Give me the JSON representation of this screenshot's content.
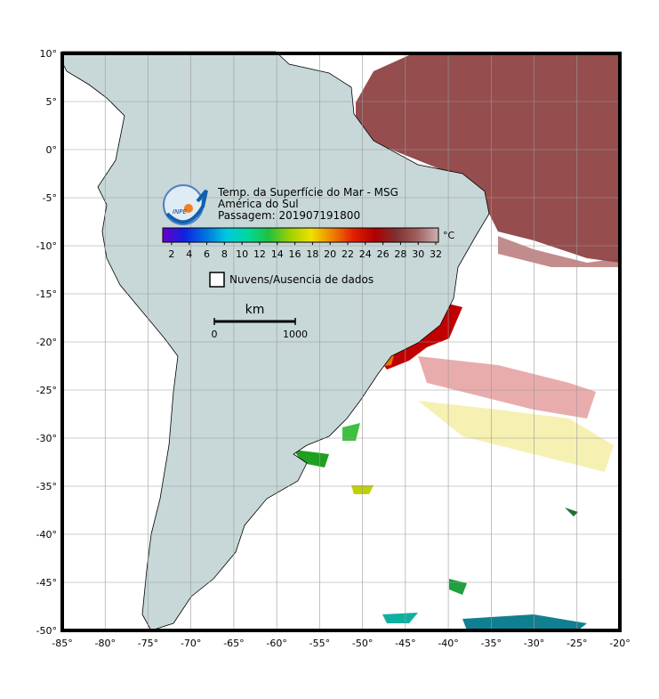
{
  "map": {
    "lon_range": [
      -85,
      -20
    ],
    "lat_range": [
      -50,
      10
    ],
    "grid": true,
    "lon_ticks": [
      {
        "value": -85,
        "label": "-85°"
      },
      {
        "value": -80,
        "label": "-80°"
      },
      {
        "value": -75,
        "label": "-75°"
      },
      {
        "value": -70,
        "label": "-70°"
      },
      {
        "value": -65,
        "label": "-65°"
      },
      {
        "value": -60,
        "label": "-60°"
      },
      {
        "value": -55,
        "label": "-55°"
      },
      {
        "value": -50,
        "label": "-50°"
      },
      {
        "value": -45,
        "label": "-45°"
      },
      {
        "value": -40,
        "label": "-40°"
      },
      {
        "value": -35,
        "label": "-35°"
      },
      {
        "value": -30,
        "label": "-30°"
      },
      {
        "value": -25,
        "label": "-25°"
      },
      {
        "value": -20,
        "label": "-20°"
      }
    ],
    "lat_ticks": [
      {
        "value": 10,
        "label": "10°"
      },
      {
        "value": 5,
        "label": "5°"
      },
      {
        "value": 0,
        "label": "0°"
      },
      {
        "value": -5,
        "label": "-5°"
      },
      {
        "value": -10,
        "label": "-10°"
      },
      {
        "value": -15,
        "label": "-15°"
      },
      {
        "value": -20,
        "label": "-20°"
      },
      {
        "value": -25,
        "label": "-25°"
      },
      {
        "value": -30,
        "label": "-30°"
      },
      {
        "value": -35,
        "label": "-35°"
      },
      {
        "value": -40,
        "label": "-40°"
      },
      {
        "value": -45,
        "label": "-45°"
      },
      {
        "value": -50,
        "label": "-50°"
      }
    ]
  },
  "legend": {
    "title": "Temp. da Superfície do Mar - MSG",
    "region": "América do Sul",
    "pass": "Passagem: 201907191800",
    "logo": "INPE"
  },
  "colorbar": {
    "unit": "°C",
    "range": [
      1,
      32.3
    ],
    "ticks": [
      2,
      4,
      6,
      8,
      10,
      12,
      14,
      16,
      18,
      20,
      22,
      24,
      26,
      28,
      30,
      32
    ],
    "colors": [
      "#6a00c8",
      "#1020e0",
      "#0070e0",
      "#00c8e0",
      "#00d8a0",
      "#20c040",
      "#a0d000",
      "#f0e000",
      "#f08000",
      "#e02000",
      "#b00000",
      "#803030",
      "#a06060",
      "#d0b0b0"
    ]
  },
  "no_data": "Nuvens/Ausencia de dados",
  "scale": {
    "unit": "km",
    "ticks": [
      0,
      1000
    ]
  }
}
